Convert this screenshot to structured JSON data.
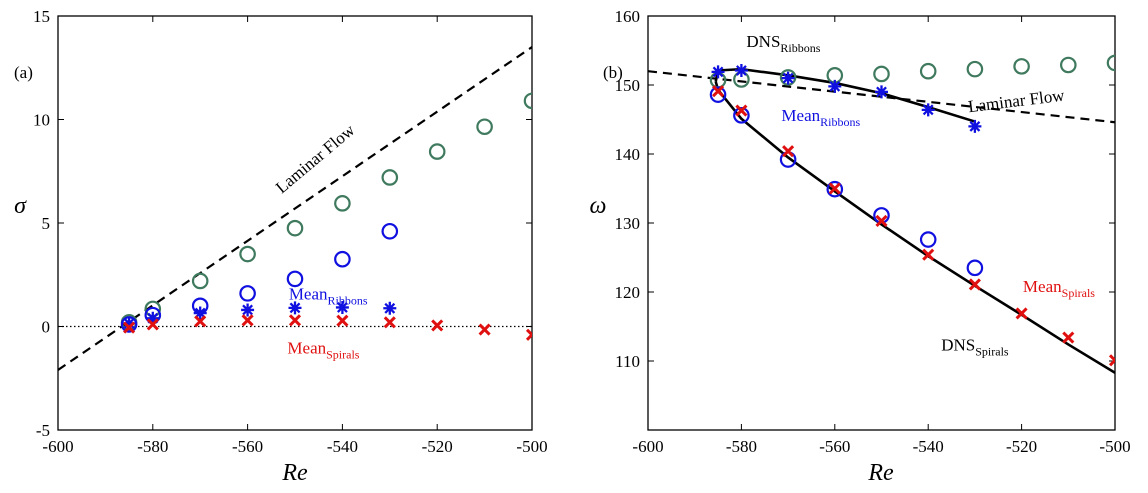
{
  "chart_data": [
    {
      "type": "scatter",
      "panel_label": "(a)",
      "xlabel": "Re",
      "ylabel": "σ",
      "xlim": [
        -600,
        -500
      ],
      "ylim": [
        -5,
        15
      ],
      "xticks": [
        -600,
        -580,
        -560,
        -540,
        -520,
        -500
      ],
      "yticks": [
        -5,
        0,
        5,
        10,
        15
      ],
      "xtick_labels": [
        "-600",
        "-580",
        "-560",
        "-540",
        "-520",
        "-500"
      ],
      "ytick_labels": [
        "-5",
        "0",
        "5",
        "10",
        "15"
      ],
      "series": [
        {
          "marker": "circle-green",
          "color": "#3f7a5e",
          "x": [
            -585,
            -580,
            -570,
            -560,
            -550,
            -540,
            -530,
            -520,
            -510,
            -500
          ],
          "y": [
            0.2,
            0.85,
            2.2,
            3.5,
            4.75,
            5.95,
            7.2,
            8.45,
            9.65,
            10.9
          ]
        },
        {
          "marker": "circle-blue",
          "color": "#1010e0",
          "x": [
            -585,
            -580,
            -570,
            -560,
            -550,
            -540,
            -530
          ],
          "y": [
            0.1,
            0.55,
            1.0,
            1.6,
            2.3,
            3.25,
            4.6
          ]
        },
        {
          "marker": "asterisk-blue",
          "color": "#1010e0",
          "x": [
            -585,
            -580,
            -570,
            -560,
            -550,
            -540,
            -530
          ],
          "y": [
            0.15,
            0.4,
            0.65,
            0.8,
            0.9,
            0.92,
            0.88
          ]
        },
        {
          "marker": "cross-red",
          "color": "#e01010",
          "x": [
            -585,
            -580,
            -570,
            -560,
            -550,
            -540,
            -530,
            -520,
            -510,
            -500
          ],
          "y": [
            -0.05,
            0.1,
            0.25,
            0.3,
            0.3,
            0.28,
            0.2,
            0.05,
            -0.15,
            -0.4
          ]
        }
      ],
      "lines": [
        {
          "style": "dashed",
          "color": "#000000",
          "x": [
            -600,
            -500
          ],
          "y": [
            -2.1,
            13.5
          ]
        },
        {
          "style": "dotted",
          "color": "#000000",
          "x": [
            -600,
            -500
          ],
          "y": [
            0,
            0
          ]
        }
      ],
      "annotations": [
        {
          "text": "Laminar Flow",
          "sub": "",
          "color": "#000000",
          "x": -545,
          "y": 7.9,
          "rotate": -40
        },
        {
          "text": "Mean",
          "sub": "Ribbons",
          "color": "#1010e0",
          "x": -543,
          "y": 1.3,
          "rotate": 0
        },
        {
          "text": "Mean",
          "sub": "Spirals",
          "color": "#e01010",
          "x": -544,
          "y": -1.3,
          "rotate": 0
        }
      ]
    },
    {
      "type": "scatter",
      "panel_label": "(b)",
      "xlabel": "Re",
      "ylabel": "ω",
      "xlim": [
        -600,
        -500
      ],
      "ylim": [
        100,
        160
      ],
      "xticks": [
        -600,
        -580,
        -560,
        -540,
        -520,
        -500
      ],
      "yticks": [
        110,
        120,
        130,
        140,
        150,
        160
      ],
      "xtick_labels": [
        "-600",
        "-580",
        "-560",
        "-540",
        "-520",
        "-500"
      ],
      "ytick_labels": [
        "110",
        "120",
        "130",
        "140",
        "150",
        "160"
      ],
      "series": [
        {
          "marker": "circle-green",
          "color": "#3f7a5e",
          "x": [
            -585,
            -580,
            -570,
            -560,
            -550,
            -540,
            -530,
            -520,
            -510,
            -500
          ],
          "y": [
            150.7,
            150.8,
            151.1,
            151.4,
            151.6,
            152.0,
            152.3,
            152.7,
            152.9,
            153.2
          ]
        },
        {
          "marker": "circle-blue",
          "color": "#1010e0",
          "x": [
            -585,
            -580,
            -570,
            -560,
            -550,
            -540,
            -530
          ],
          "y": [
            148.6,
            145.6,
            139.2,
            134.9,
            131.1,
            127.6,
            123.5
          ]
        },
        {
          "marker": "asterisk-blue",
          "color": "#1010e0",
          "x": [
            -585,
            -580,
            -570,
            -560,
            -550,
            -540,
            -530
          ],
          "y": [
            151.9,
            152.1,
            151.0,
            149.8,
            149.0,
            146.4,
            144.0
          ]
        },
        {
          "marker": "cross-red",
          "color": "#e01010",
          "x": [
            -585,
            -580,
            -570,
            -560,
            -550,
            -540,
            -530,
            -520,
            -510,
            -500
          ],
          "y": [
            149.1,
            146.3,
            140.4,
            135.0,
            130.3,
            125.4,
            121.1,
            116.9,
            113.4,
            110.1
          ]
        }
      ],
      "lines": [
        {
          "style": "dashed",
          "color": "#000000",
          "x": [
            -600,
            -500
          ],
          "y": [
            152.0,
            144.6
          ]
        },
        {
          "style": "solid",
          "color": "#000000",
          "x": [
            -585.5,
            -585,
            -580,
            -570,
            -560,
            -550,
            -540,
            -530
          ],
          "y": [
            150.5,
            152.1,
            152.3,
            151.4,
            150.3,
            148.8,
            146.8,
            144.7
          ]
        },
        {
          "style": "solid",
          "color": "#000000",
          "x": [
            -585.5,
            -585,
            -580,
            -570,
            -560,
            -550,
            -540,
            -530,
            -520,
            -510,
            -500
          ],
          "y": [
            150.5,
            149.3,
            145.1,
            139.5,
            134.6,
            129.8,
            125.2,
            120.9,
            116.7,
            112.4,
            108.3
          ]
        }
      ],
      "annotations": [
        {
          "text": "DNS",
          "sub": "Ribbons",
          "color": "#000000",
          "x": -571,
          "y": 155.5,
          "rotate": 0
        },
        {
          "text": "Laminar Flow",
          "sub": "",
          "color": "#000000",
          "x": -521,
          "y": 146.9,
          "rotate": -7
        },
        {
          "text": "Mean",
          "sub": "Ribbons",
          "color": "#1010e0",
          "x": -563,
          "y": 144.8,
          "rotate": 0
        },
        {
          "text": "Mean",
          "sub": "Spirals",
          "color": "#e01010",
          "x": -512,
          "y": 120.0,
          "rotate": 0
        },
        {
          "text": "DNS",
          "sub": "Spirals",
          "color": "#000000",
          "x": -530,
          "y": 111.5,
          "rotate": 0
        }
      ]
    }
  ]
}
